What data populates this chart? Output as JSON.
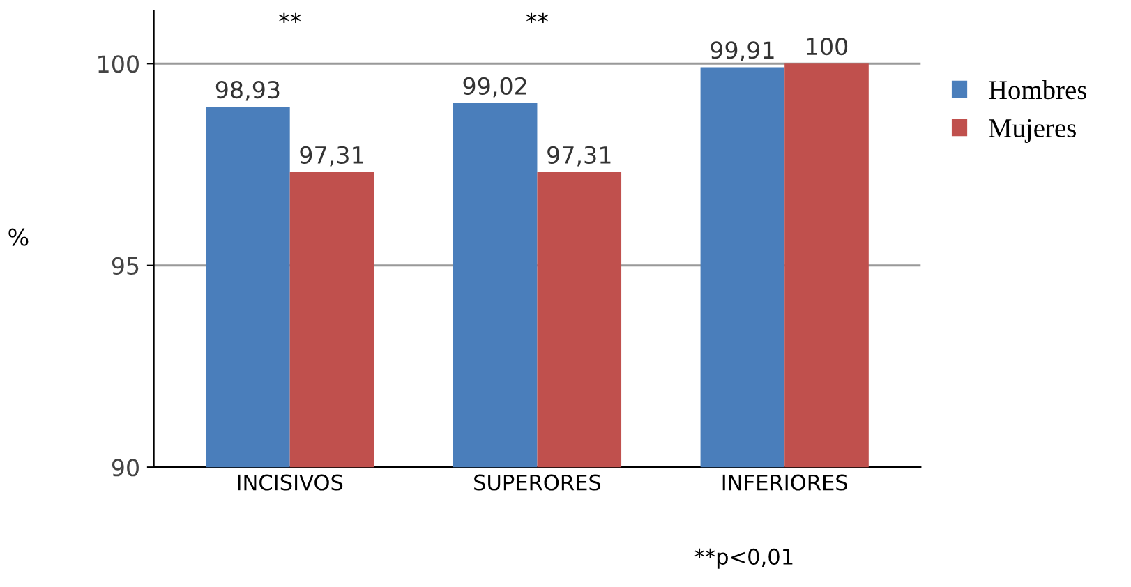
{
  "chart_data": {
    "type": "bar",
    "ylabel": "%",
    "categories": [
      "INCISIVOS",
      "SUPERORES",
      "INFERIORES"
    ],
    "series": [
      {
        "name": "Hombres",
        "color": "#4a7ebb",
        "values": [
          98.93,
          99.02,
          99.91
        ],
        "value_labels": [
          "98,93",
          "99,02",
          "99,91"
        ]
      },
      {
        "name": "Mujeres",
        "color": "#c0504d",
        "values": [
          97.31,
          97.31,
          100
        ],
        "value_labels": [
          "97,31",
          "97,31",
          "100"
        ]
      }
    ],
    "ylim": [
      90,
      101.3
    ],
    "yticks": [
      90,
      95,
      100
    ],
    "grid": "y",
    "legend": "right",
    "annotations": [
      "**",
      "**",
      "**p<0,01"
    ]
  }
}
